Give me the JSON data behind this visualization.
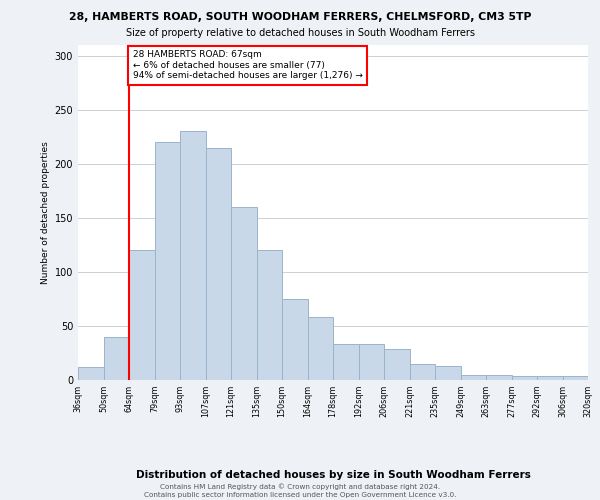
{
  "title1": "28, HAMBERTS ROAD, SOUTH WOODHAM FERRERS, CHELMSFORD, CM3 5TP",
  "title2": "Size of property relative to detached houses in South Woodham Ferrers",
  "xlabel": "Distribution of detached houses by size in South Woodham Ferrers",
  "ylabel": "Number of detached properties",
  "footnote1": "Contains HM Land Registry data © Crown copyright and database right 2024.",
  "footnote2": "Contains public sector information licensed under the Open Government Licence v3.0.",
  "bar_labels": [
    "36sqm",
    "50sqm",
    "64sqm",
    "79sqm",
    "93sqm",
    "107sqm",
    "121sqm",
    "135sqm",
    "150sqm",
    "164sqm",
    "178sqm",
    "192sqm",
    "206sqm",
    "221sqm",
    "235sqm",
    "249sqm",
    "263sqm",
    "277sqm",
    "292sqm",
    "306sqm",
    "320sqm"
  ],
  "bar_values": [
    12,
    40,
    120,
    220,
    230,
    215,
    160,
    120,
    75,
    58,
    33,
    33,
    29,
    15,
    13,
    5,
    5,
    4,
    4,
    4
  ],
  "bar_color": "#c8d8e8",
  "bar_edge_color": "#9ab4cc",
  "annotation_box_text": "28 HAMBERTS ROAD: 67sqm\n← 6% of detached houses are smaller (77)\n94% of semi-detached houses are larger (1,276) →",
  "annotation_box_color": "white",
  "annotation_box_edge_color": "red",
  "annotation_line_color": "red",
  "ylim": [
    0,
    310
  ],
  "yticks": [
    0,
    50,
    100,
    150,
    200,
    250,
    300
  ],
  "background_color": "#eef2f6",
  "plot_bg_color": "white",
  "grid_color": "#c8d0d8"
}
